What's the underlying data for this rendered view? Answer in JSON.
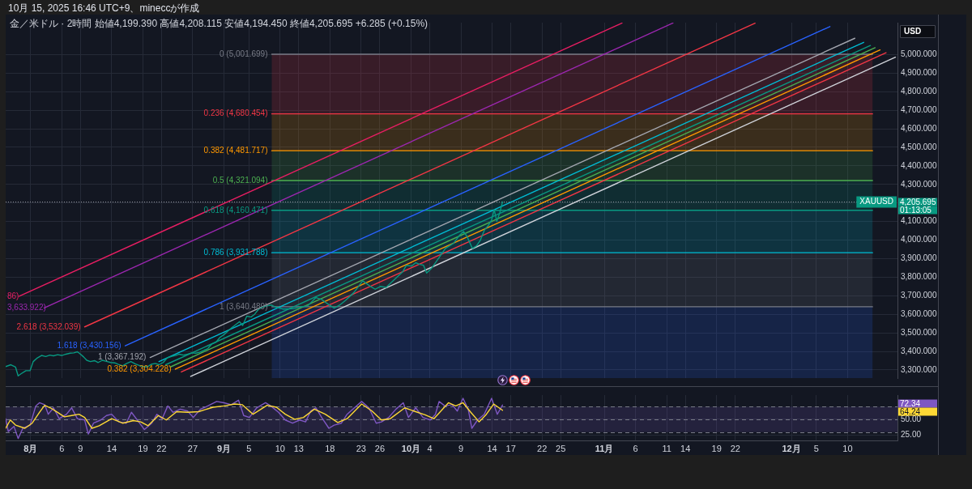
{
  "chart_data": [
    {
      "type": "line",
      "title": "金／米ドル · 2時間 始値4,199.390 高値4,208.115 安値4,194.450 終値4,205.695 +6.285 (+0.15%)",
      "ylabel": "USD",
      "annotations": [
        "10月 15, 2025 16:46 UTC+9、mineccが作成",
        "4,205.695",
        "01:13:05"
      ],
      "xlim": [
        "2025-07-28",
        "2025-12-18"
      ],
      "ylim": [
        3256,
        5172
      ],
      "xticks": [
        {
          "value": "2025-08-01",
          "label": null
        },
        {
          "value": "2025-08-06",
          "label": null
        },
        {
          "value": "2025-08-09",
          "label": null
        },
        {
          "value": "2025-08-14",
          "label": null
        },
        {
          "value": "2025-08-19",
          "label": null
        },
        {
          "value": "2025-08-22",
          "label": null
        },
        {
          "value": "2025-08-27",
          "label": null
        },
        {
          "value": "2025-09-01",
          "label": null
        },
        {
          "value": "2025-09-05",
          "label": null
        },
        {
          "value": "2025-09-10",
          "label": null
        },
        {
          "value": "2025-09-13",
          "label": null
        },
        {
          "value": "2025-09-18",
          "label": null
        },
        {
          "value": "2025-09-23",
          "label": null
        },
        {
          "value": "2025-09-26",
          "label": null
        },
        {
          "value": "2025-10-01",
          "label": null
        },
        {
          "value": "2025-10-04",
          "label": null
        },
        {
          "value": "2025-10-09",
          "label": null
        },
        {
          "value": "2025-10-14",
          "label": null
        },
        {
          "value": "2025-10-17",
          "label": null
        },
        {
          "value": "2025-10-22",
          "label": null
        },
        {
          "value": "2025-10-25",
          "label": null
        },
        {
          "value": "2025-11-01",
          "label": null
        },
        {
          "value": "2025-11-06",
          "label": null
        },
        {
          "value": "2025-11-11",
          "label": null
        },
        {
          "value": "2025-11-14",
          "label": null
        },
        {
          "value": "2025-11-19",
          "label": null
        },
        {
          "value": "2025-11-22",
          "label": null
        },
        {
          "value": "2025-12-01",
          "label": null
        },
        {
          "value": "2025-12-05",
          "label": null
        },
        {
          "value": "2025-12-10",
          "label": null
        }
      ],
      "yticks": [
        {
          "value": 3300,
          "label": "3,300.000"
        },
        {
          "value": 3400,
          "label": "3,400.000"
        },
        {
          "value": 3500,
          "label": "3,500.000"
        },
        {
          "value": 3600,
          "label": "3,600.000"
        },
        {
          "value": 3700,
          "label": "3,700.000"
        },
        {
          "value": 3800,
          "label": "3,800.000"
        },
        {
          "value": 3900,
          "label": "3,900.000"
        },
        {
          "value": 4000,
          "label": "4,000.000"
        },
        {
          "value": 4100,
          "label": "4,100.000"
        },
        {
          "value": 4200,
          "label": null
        },
        {
          "value": 4300,
          "label": "4,300.000"
        },
        {
          "value": 4400,
          "label": "4,400.000"
        },
        {
          "value": 4500,
          "label": "4,500.000"
        },
        {
          "value": 4600,
          "label": "4,600.000"
        },
        {
          "value": 4700,
          "label": "4,700.000"
        },
        {
          "value": 4800,
          "label": "4,800.000"
        },
        {
          "value": 4900,
          "label": "4,900.000"
        },
        {
          "value": 5000,
          "label": "5,000.000"
        }
      ],
      "tick_labels": "y",
      "grid": true,
      "ref_lines": [
        {
          "axis": "y",
          "value": 4205.695,
          "label": "XAUUSD",
          "color": "#9598a1",
          "line_style": "dotted"
        }
      ],
      "bands": [
        {
          "axis": "y",
          "from": 3256,
          "to": 3640.489,
          "color": "#2962ff"
        },
        {
          "axis": "y",
          "from": 3640.489,
          "to": 3931.788,
          "color": "#787b86"
        },
        {
          "axis": "y",
          "from": 3931.788,
          "to": 4160.471,
          "color": "#00bcd4"
        },
        {
          "axis": "y",
          "from": 4160.471,
          "to": 4321.094,
          "color": "#089981"
        },
        {
          "axis": "y",
          "from": 4321.094,
          "to": 4481.717,
          "color": "#4caf50"
        },
        {
          "axis": "y",
          "from": 4481.717,
          "to": 4680.454,
          "color": "#ff9800"
        },
        {
          "axis": "y",
          "from": 4680.454,
          "to": 5001.699,
          "color": "#f23645"
        }
      ],
      "series": [
        {
          "name": "0 (5,001.699)",
          "color": "#787b86",
          "x": [
            "2025-09-08T16:00",
            "2025-12-14T00:00"
          ],
          "values": [
            5001.699,
            5001.699
          ]
        },
        {
          "name": "0.236 (4,680.454)",
          "color": "#f23645",
          "x": [
            "2025-09-08T16:00",
            "2025-12-14T00:00"
          ],
          "values": [
            4680.454,
            4680.454
          ]
        },
        {
          "name": "0.382 (4,481.717)",
          "color": "#ff9800",
          "x": [
            "2025-09-08T16:00",
            "2025-12-14T00:00"
          ],
          "values": [
            4481.717,
            4481.717
          ]
        },
        {
          "name": "0.5 (4,321.094)",
          "color": "#4caf50",
          "x": [
            "2025-09-08T16:00",
            "2025-12-14T00:00"
          ],
          "values": [
            4321.094,
            4321.094
          ]
        },
        {
          "name": "0.618 (4,160.471)",
          "color": "#089981",
          "x": [
            "2025-09-08T16:00",
            "2025-12-14T00:00"
          ],
          "values": [
            4160.471,
            4160.471
          ]
        },
        {
          "name": "0.786 (3,931.788)",
          "color": "#00bcd4",
          "x": [
            "2025-09-08T16:00",
            "2025-12-14T00:00"
          ],
          "values": [
            3931.788,
            3931.788
          ]
        },
        {
          "name": "1 (3,640.489)",
          "color": "#787b86",
          "x": [
            "2025-09-08T16:00",
            "2025-12-14T00:00"
          ],
          "values": [
            3640.489,
            3640.489
          ]
        },
        {
          "color": "#cfd2d9",
          "x": [
            "2025-08-26T16:00",
            "2025-12-17T16:00"
          ],
          "values": [
            3265,
            4986
          ]
        },
        {
          "color": "#f23645",
          "x": [
            "2025-08-25T04:00",
            "2025-12-16T04:00"
          ],
          "values": [
            3289,
            5010
          ]
        },
        {
          "name": "0.382 (3,304.228)",
          "color": "#ff9800",
          "x": [
            "2025-08-24T05:00",
            "2025-12-15T05:00"
          ],
          "values": [
            3304.228,
            5025
          ]
        },
        {
          "color": "#4caf50",
          "x": [
            "2025-08-23T10:00",
            "2025-12-14T10:00"
          ],
          "values": [
            3316,
            5037
          ]
        },
        {
          "color": "#089981",
          "x": [
            "2025-08-22T16:00",
            "2025-12-13T16:00"
          ],
          "values": [
            3328,
            5049
          ]
        },
        {
          "color": "#00bcd4",
          "x": [
            "2025-08-21T14:00",
            "2025-12-12T14:00"
          ],
          "values": [
            3345,
            5066
          ]
        },
        {
          "name": "1 (3,367.192)",
          "color": "#a3a6af",
          "x": [
            "2025-08-20T04:00",
            "2025-12-11T04:00"
          ],
          "values": [
            3367.192,
            5088
          ]
        },
        {
          "name": "1.618 (3,430.156)",
          "color": "#2962ff",
          "x": [
            "2025-08-16T04:00",
            "2025-12-07T04:00"
          ],
          "values": [
            3430.156,
            5151
          ]
        },
        {
          "name": "2.618 (3,532.039)",
          "color": "#f23645",
          "x": [
            "2025-08-09T16:00",
            "2025-11-25T04:00"
          ],
          "values": [
            3532.039,
            5169
          ]
        },
        {
          "name": "3,633.922)",
          "color": "#9c27b0",
          "x": [
            "2025-08-03T04:00",
            "2025-11-12T00:00"
          ],
          "values": [
            3633.922,
            5170
          ]
        },
        {
          "name": "86)",
          "color": "#e91e63",
          "x": [
            "2025-07-30T04:00",
            "2025-11-03T20:00"
          ],
          "values": [
            3696.886,
            5170
          ]
        },
        {
          "color": "#089981",
          "x": [
            "2025-07-28T00:00",
            "2025-07-28T20:00",
            "2025-07-29T14:00",
            "2025-07-30T00:00",
            "2025-07-30T12:00",
            "2025-07-31T06:00",
            "2025-07-31T22:00",
            "2025-08-01T10:00",
            "2025-08-02T02:00",
            "2025-08-02T18:00",
            "2025-08-03T10:00",
            "2025-08-04T02:00",
            "2025-08-04T16:00",
            "2025-08-05T08:00",
            "2025-08-06T00:00",
            "2025-08-06T16:00",
            "2025-08-07T08:00",
            "2025-08-07T22:00",
            "2025-08-08T12:00",
            "2025-08-09T00:00",
            "2025-08-09T12:00",
            "2025-08-10T00:00",
            "2025-08-10T14:00",
            "2025-08-11T06:00",
            "2025-08-11T20:00",
            "2025-08-12T12:00",
            "2025-08-13T04:00",
            "2025-08-13T20:00",
            "2025-08-14T12:00",
            "2025-08-15T02:00",
            "2025-08-15T18:00",
            "2025-08-16T10:00",
            "2025-08-17T02:00",
            "2025-08-17T18:00",
            "2025-08-18T08:00",
            "2025-08-19T00:00",
            "2025-08-19T16:00",
            "2025-08-20T08:00",
            "2025-08-21T00:00",
            "2025-08-21T14:00",
            "2025-08-22T06:00",
            "2025-08-22T22:00",
            "2025-08-23T14:00",
            "2025-08-24T06:00",
            "2025-08-24T20:00",
            "2025-08-25T12:00",
            "2025-08-26T04:00",
            "2025-08-26T20:00",
            "2025-08-27T12:00",
            "2025-08-28T02:00",
            "2025-08-28T18:00",
            "2025-08-29T10:00",
            "2025-08-30T02:00",
            "2025-08-30T18:00",
            "2025-08-31T08:00",
            "2025-09-01T00:00",
            "2025-09-01T16:00",
            "2025-09-02T08:00",
            "2025-09-02T22:00",
            "2025-09-03T12:00",
            "2025-09-04T00:00",
            "2025-09-04T16:00",
            "2025-09-05T08:00",
            "2025-09-05T22:00",
            "2025-09-06T14:00",
            "2025-09-07T06:00",
            "2025-09-07T22:00",
            "2025-09-08T14:00",
            "2025-09-09T04:00",
            "2025-09-10T12:00",
            "2025-09-12T04:00",
            "2025-09-13T08:00",
            "2025-09-14T10:00",
            "2025-09-15T18:00",
            "2025-09-16T16:00",
            "2025-09-17T10:00",
            "2025-09-18T16:00",
            "2025-09-19T14:00",
            "2025-09-20T12:00",
            "2025-09-21T20:00",
            "2025-09-23T06:00",
            "2025-09-24T10:00",
            "2025-09-25T06:00",
            "2025-09-26T02:00",
            "2025-09-27T00:00",
            "2025-09-28T08:00",
            "2025-09-29T16:00",
            "2025-09-30T06:00",
            "2025-10-01T02:00",
            "2025-10-01T18:00",
            "2025-10-02T08:00",
            "2025-10-03T00:00",
            "2025-10-03T12:00",
            "2025-10-04T08:00",
            "2025-10-05T12:00",
            "2025-10-06T12:00",
            "2025-10-07T20:00",
            "2025-10-08T18:00",
            "2025-10-09T10:00",
            "2025-10-10T00:00",
            "2025-10-10T20:00",
            "2025-10-11T12:00",
            "2025-10-12T02:00",
            "2025-10-12T18:00",
            "2025-10-13T10:00",
            "2025-10-13T22:00",
            "2025-10-14T08:00",
            "2025-10-14T18:00",
            "2025-10-15T06:00",
            "2025-10-15T16:00"
          ],
          "values": [
            3318,
            3328,
            3315,
            3268,
            3280,
            3296,
            3296,
            3345,
            3365,
            3378,
            3372,
            3380,
            3376,
            3382,
            3378,
            3385,
            3390,
            3392,
            3398,
            3385,
            3370,
            3352,
            3345,
            3350,
            3340,
            3352,
            3346,
            3340,
            3338,
            3330,
            3322,
            3335,
            3345,
            3333,
            3325,
            3318,
            3316,
            3330,
            3335,
            3328,
            3340,
            3365,
            3372,
            3378,
            3385,
            3380,
            3385,
            3392,
            3390,
            3395,
            3405,
            3415,
            3440,
            3450,
            3475,
            3490,
            3510,
            3530,
            3545,
            3560,
            3540,
            3590,
            3585,
            3600,
            3628,
            3640,
            3645,
            3650,
            3640,
            3628,
            3630,
            3640,
            3645,
            3690,
            3680,
            3661,
            3633,
            3650,
            3675,
            3717,
            3780,
            3752,
            3735,
            3750,
            3745,
            3787,
            3829,
            3864,
            3860,
            3878,
            3870,
            3864,
            3822,
            3850,
            3906,
            3955,
            3983,
            4025,
            4046,
            4018,
            3955,
            3969,
            3997,
            4053,
            4080,
            4108,
            4164,
            4101,
            4150,
            4205.695
          ]
        }
      ]
    },
    {
      "type": "line",
      "xlim": [
        "2025-07-28",
        "2025-12-18"
      ],
      "ylim": [
        17,
        88
      ],
      "annotations": [
        "72.34",
        "64.24"
      ],
      "xticks": [
        {
          "value": "2025-08-01",
          "label": "8月"
        },
        {
          "value": "2025-08-06",
          "label": "6"
        },
        {
          "value": "2025-08-09",
          "label": "9"
        },
        {
          "value": "2025-08-14",
          "label": "14"
        },
        {
          "value": "2025-08-19",
          "label": "19"
        },
        {
          "value": "2025-08-22",
          "label": "22"
        },
        {
          "value": "2025-08-27",
          "label": "27"
        },
        {
          "value": "2025-09-01",
          "label": "9月"
        },
        {
          "value": "2025-09-05",
          "label": "5"
        },
        {
          "value": "2025-09-10",
          "label": "10"
        },
        {
          "value": "2025-09-13",
          "label": "13"
        },
        {
          "value": "2025-09-18",
          "label": "18"
        },
        {
          "value": "2025-09-23",
          "label": "23"
        },
        {
          "value": "2025-09-26",
          "label": "26"
        },
        {
          "value": "2025-10-01",
          "label": "10月"
        },
        {
          "value": "2025-10-04",
          "label": "4"
        },
        {
          "value": "2025-10-09",
          "label": "9"
        },
        {
          "value": "2025-10-14",
          "label": "14"
        },
        {
          "value": "2025-10-17",
          "label": "17"
        },
        {
          "value": "2025-10-22",
          "label": "22"
        },
        {
          "value": "2025-10-25",
          "label": "25"
        },
        {
          "value": "2025-11-01",
          "label": "11月"
        },
        {
          "value": "2025-11-06",
          "label": "6"
        },
        {
          "value": "2025-11-11",
          "label": "11"
        },
        {
          "value": "2025-11-14",
          "label": "14"
        },
        {
          "value": "2025-11-19",
          "label": "19"
        },
        {
          "value": "2025-11-22",
          "label": "22"
        },
        {
          "value": "2025-12-01",
          "label": "12月"
        },
        {
          "value": "2025-12-05",
          "label": "5"
        },
        {
          "value": "2025-12-10",
          "label": "10"
        }
      ],
      "yticks": [
        {
          "value": 25,
          "label": "25.00"
        },
        {
          "value": 50,
          "label": "50.00"
        }
      ],
      "grid": true,
      "bands": [
        {
          "axis": "y",
          "from": 30,
          "to": 70,
          "color": "#7e57c2"
        }
      ],
      "ref_lines": [
        {
          "axis": "y",
          "value": 70,
          "color": "#787b86",
          "line_style": "dashed"
        },
        {
          "axis": "y",
          "value": 50,
          "color": "#787b86",
          "line_style": "dashed"
        },
        {
          "axis": "y",
          "value": 30,
          "color": "#787b86",
          "line_style": "dashed"
        }
      ],
      "series": [
        {
          "color": "#7e57c2",
          "x": [
            "2025-07-28T00:00",
            "2025-07-28T10:00",
            "2025-07-29T08:00",
            "2025-07-30T00:00",
            "2025-07-30T18:00",
            "2025-07-31T22:00",
            "2025-08-01T20:00",
            "2025-08-02T10:00",
            "2025-08-03T06:00",
            "2025-08-03T20:00",
            "2025-08-04T16:00",
            "2025-08-05T14:00",
            "2025-08-06T18:00",
            "2025-08-07T14:00",
            "2025-08-08T12:00",
            "2025-08-09T16:00",
            "2025-08-10T06:00",
            "2025-08-11T02:00",
            "2025-08-12T06:00",
            "2025-08-13T04:00",
            "2025-08-14T00:00",
            "2025-08-15T04:00",
            "2025-08-16T08:00",
            "2025-08-17T04:00",
            "2025-08-18T08:00",
            "2025-08-19T06:00",
            "2025-08-20T10:00",
            "2025-08-21T06:00",
            "2025-08-22T02:00",
            "2025-08-23T00:00",
            "2025-08-23T20:00",
            "2025-08-25T00:00",
            "2025-08-26T04:00",
            "2025-08-27T02:00",
            "2025-08-28T06:00",
            "2025-08-29T10:00",
            "2025-08-30T20:00",
            "2025-09-01T00:00",
            "2025-09-02T04:00",
            "2025-09-03T08:00",
            "2025-09-04T04:00",
            "2025-09-05T02:00",
            "2025-09-06T06:00",
            "2025-09-07T16:00",
            "2025-09-08T12:00",
            "2025-09-09T18:00",
            "2025-09-10T20:00",
            "2025-09-12T00:00",
            "2025-09-13T04:00",
            "2025-09-14T02:00",
            "2025-09-14T22:00",
            "2025-09-15T18:00",
            "2025-09-16T16:00",
            "2025-09-17T20:00",
            "2025-09-18T16:00",
            "2025-09-19T20:00",
            "2025-09-20T18:00",
            "2025-09-21T22:00",
            "2025-09-23T02:00",
            "2025-09-24T06:00",
            "2025-09-25T10:00",
            "2025-09-26T06:00",
            "2025-09-27T10:00",
            "2025-09-28T14:00",
            "2025-09-29T18:00",
            "2025-09-30T14:00",
            "2025-10-01T18:00",
            "2025-10-02T22:00",
            "2025-10-04T02:00",
            "2025-10-04T22:00",
            "2025-10-05T12:00",
            "2025-10-06T10:00",
            "2025-10-07T14:00",
            "2025-10-08T10:00",
            "2025-10-09T08:00",
            "2025-10-10T04:00",
            "2025-10-10T18:00",
            "2025-10-11T16:00",
            "2025-10-12T18:00",
            "2025-10-13T22:00",
            "2025-10-14T20:00",
            "2025-10-15T16:00"
          ],
          "values": [
            51,
            31,
            39,
            20,
            36,
            41,
            71,
            76,
            73,
            58,
            68,
            51,
            58,
            68,
            51,
            49,
            27,
            44,
            49,
            56,
            58,
            46,
            44,
            61,
            46,
            34,
            44,
            58,
            51,
            71,
            61,
            66,
            63,
            53,
            66,
            71,
            78,
            76,
            73,
            80,
            56,
            53,
            68,
            76,
            71,
            61,
            49,
            44,
            49,
            46,
            63,
            68,
            53,
            36,
            41,
            44,
            58,
            68,
            78,
            68,
            44,
            46,
            53,
            66,
            76,
            53,
            68,
            53,
            49,
            58,
            78,
            71,
            73,
            63,
            83,
            66,
            36,
            49,
            58,
            83,
            58,
            72.34
          ]
        },
        {
          "color": "#fdd835",
          "x": [
            "2025-07-28T00:00",
            "2025-07-28T18:00",
            "2025-07-29T14:00",
            "2025-07-31T02:00",
            "2025-08-01T06:00",
            "2025-08-02T10:00",
            "2025-08-03T06:00",
            "2025-08-04T04:00",
            "2025-08-05T08:00",
            "2025-08-06T10:00",
            "2025-08-07T14:00",
            "2025-08-08T18:00",
            "2025-08-09T16:00",
            "2025-08-10T20:00",
            "2025-08-12T00:00",
            "2025-08-14T00:00",
            "2025-08-15T18:00",
            "2025-08-17T12:00",
            "2025-08-18T16:00",
            "2025-08-19T20:00",
            "2025-08-21T12:00",
            "2025-08-22T18:00",
            "2025-08-24T10:00",
            "2025-08-26T04:00",
            "2025-08-27T22:00",
            "2025-08-30T06:00",
            "2025-09-01T00:00",
            "2025-09-02T18:00",
            "2025-09-03T22:00",
            "2025-09-05T16:00",
            "2025-09-07T22:00",
            "2025-09-09T10:00",
            "2025-09-10T20:00",
            "2025-09-12T08:00",
            "2025-09-13T18:00",
            "2025-09-15T12:00",
            "2025-09-17T06:00",
            "2025-09-19T06:00",
            "2025-09-20T18:00",
            "2025-09-23T02:00",
            "2025-09-24T18:00",
            "2025-09-26T06:00",
            "2025-09-27T16:00",
            "2025-09-30T00:00",
            "2025-10-01T18:00",
            "2025-10-03T06:00",
            "2025-10-04T16:00",
            "2025-10-07T00:00",
            "2025-10-08T04:00",
            "2025-10-09T08:00",
            "2025-10-10T12:00",
            "2025-10-11T22:00",
            "2025-10-13T02:00",
            "2025-10-14T06:00",
            "2025-10-15T16:00"
          ],
          "values": [
            36,
            49,
            41,
            36,
            44,
            61,
            72,
            68,
            61,
            54,
            56,
            58,
            53,
            36,
            40,
            51,
            44,
            48,
            46,
            40,
            56,
            49,
            62,
            61,
            62,
            69,
            71,
            74,
            73,
            58,
            72,
            69,
            58,
            50,
            53,
            66,
            58,
            45,
            51,
            74,
            63,
            49,
            51,
            68,
            62,
            57,
            51,
            76,
            71,
            76,
            62,
            46,
            58,
            74,
            64.24
          ]
        }
      ]
    }
  ]
}
